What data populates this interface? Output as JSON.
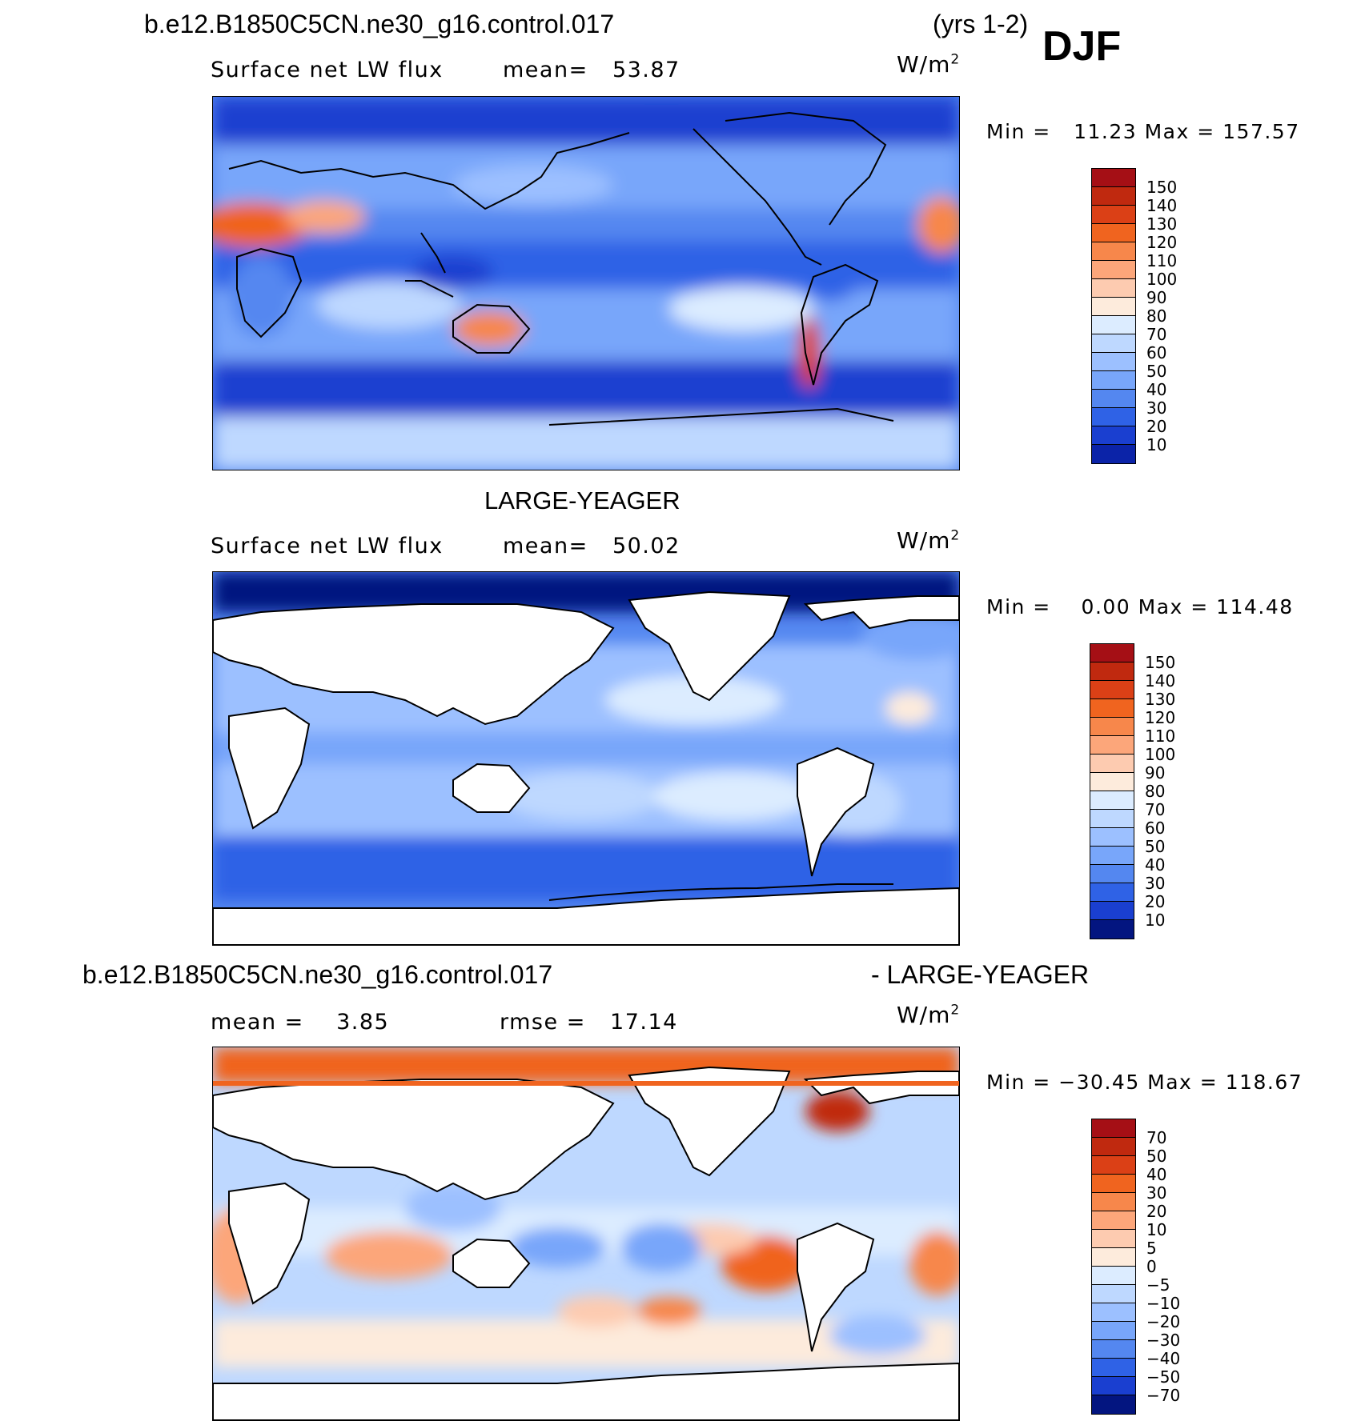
{
  "header": {
    "case_name": "b.e12.B1850C5CN.ne30_g16.control.017",
    "years": "(yrs 1-2)",
    "season": "DJF"
  },
  "panels": [
    {
      "title": "",
      "variable": "Surface net LW flux",
      "stat1": "mean=   53.87",
      "stat2": "",
      "units_base": "W/m",
      "units_exp": "2",
      "minmax": "Min =   11.23 Max = 157.57",
      "colorbar": {
        "colors": [
          "#a50f15",
          "#c0290f",
          "#db4016",
          "#f0641f",
          "#f7874b",
          "#fca67a",
          "#fdcbb0",
          "#fdebdc",
          "#dcecff",
          "#bed8ff",
          "#9cc0ff",
          "#78a6fa",
          "#5487f0",
          "#2f62e6",
          "#1a3fd0",
          "#0b23a8",
          "#031580"
        ],
        "labels": [
          "150",
          "140",
          "130",
          "120",
          "110",
          "100",
          "90",
          "80",
          "70",
          "60",
          "50",
          "40",
          "30",
          "20",
          "10"
        ]
      }
    },
    {
      "title": "LARGE-YEAGER",
      "variable": "Surface net LW flux",
      "stat1": "mean=   50.02",
      "stat2": "",
      "units_base": "W/m",
      "units_exp": "2",
      "minmax": "Min =    0.00 Max = 114.48",
      "colorbar": {
        "colors": [
          "#a50f15",
          "#c0290f",
          "#db4016",
          "#f0641f",
          "#f7874b",
          "#fca67a",
          "#fdcbb0",
          "#fdebdc",
          "#dcecff",
          "#bed8ff",
          "#9cc0ff",
          "#78a6fa",
          "#5487f0",
          "#2f62e6",
          "#1a3fd0",
          "#0b23a8",
          "#031580"
        ],
        "labels": [
          "150",
          "140",
          "130",
          "120",
          "110",
          "100",
          "90",
          "80",
          "70",
          "60",
          "50",
          "40",
          "30",
          "20",
          "10"
        ]
      }
    },
    {
      "title_left": "b.e12.B1850C5CN.ne30_g16.control.017",
      "title_right": "- LARGE-YEAGER",
      "stat1": "mean =    3.85",
      "stat2": "rmse =   17.14",
      "units_base": "W/m",
      "units_exp": "2",
      "minmax": "Min = −30.45 Max = 118.67",
      "colorbar": {
        "colors": [
          "#a50f15",
          "#c0290f",
          "#db4016",
          "#f0641f",
          "#f7874b",
          "#fca67a",
          "#fdcbb0",
          "#fdebdc",
          "#dcecff",
          "#bed8ff",
          "#9cc0ff",
          "#78a6fa",
          "#5487f0",
          "#2f62e6",
          "#1a3fd0",
          "#0b23a8",
          "#031580"
        ],
        "labels": [
          "70",
          "50",
          "40",
          "30",
          "20",
          "10",
          "5",
          "0",
          "−5",
          "−10",
          "−20",
          "−30",
          "−40",
          "−50",
          "−70"
        ]
      }
    }
  ]
}
